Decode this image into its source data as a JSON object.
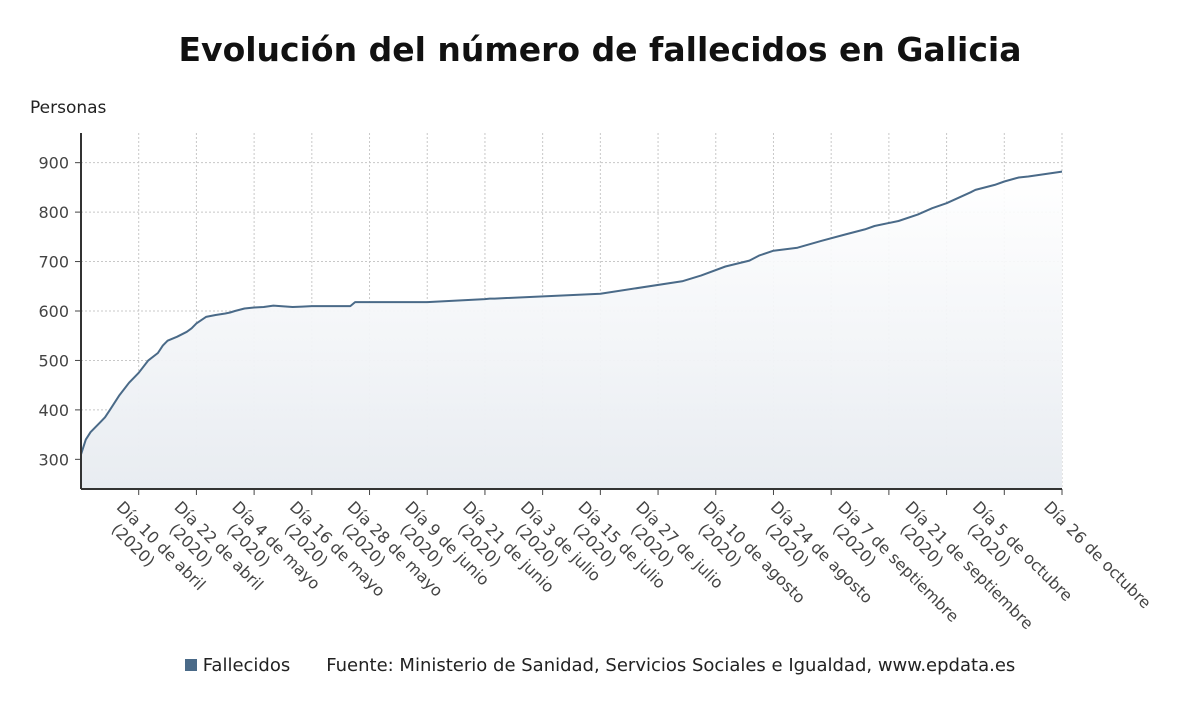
{
  "title": "Evolución del número de fallecidos en Galicia",
  "y_unit": "Personas",
  "legend": {
    "label": "Fallecidos",
    "color": "#4a6a88"
  },
  "source": "Fuente: Ministerio de Sanidad, Servicios Sociales e Igualdad, www.epdata.es",
  "chart_data": {
    "type": "area",
    "ylim": [
      240,
      960
    ],
    "y_ticks": [
      300,
      400,
      500,
      600,
      700,
      800,
      900
    ],
    "grid": true,
    "x_tick_labels": [
      "Día 10 de abril (2020)",
      "Día 22 de abril (2020)",
      "Día 4 de mayo (2020)",
      "Día 16 de mayo (2020)",
      "Día 28 de mayo (2020)",
      "Día 9 de junio (2020)",
      "Día 21 de junio (2020)",
      "Día 3 de julio (2020)",
      "Día 15 de julio (2020)",
      "Día 27 de julio (2020)",
      "Día 10 de agosto (2020)",
      "Día 24 de agosto (2020)",
      "Día 7 de septiembre (2020)",
      "Día 21 de septiembre (2020)",
      "Día 5 de octubre (2020)",
      "Día 26 de octubre"
    ],
    "x_tick_dates": [
      "2020-04-10",
      "2020-04-22",
      "2020-05-04",
      "2020-05-16",
      "2020-05-28",
      "2020-06-09",
      "2020-06-21",
      "2020-07-03",
      "2020-07-15",
      "2020-07-27",
      "2020-08-10",
      "2020-08-24",
      "2020-09-07",
      "2020-09-21",
      "2020-10-05",
      "2020-10-26"
    ],
    "x_grid_dates": [
      "2020-04-10",
      "2020-04-22",
      "2020-05-04",
      "2020-05-16",
      "2020-05-28",
      "2020-06-09",
      "2020-06-21",
      "2020-07-03",
      "2020-07-15",
      "2020-07-27",
      "2020-08-08",
      "2020-08-20",
      "2020-09-01",
      "2020-09-13",
      "2020-09-25",
      "2020-10-07",
      "2020-10-19"
    ],
    "x_range": [
      "2020-03-29",
      "2020-10-19"
    ],
    "series": [
      {
        "name": "Fallecidos",
        "color": "#4a6a88",
        "x": [
          "2020-03-29",
          "2020-03-30",
          "2020-03-31",
          "2020-04-02",
          "2020-04-03",
          "2020-04-04",
          "2020-04-06",
          "2020-04-08",
          "2020-04-10",
          "2020-04-12",
          "2020-04-14",
          "2020-04-15",
          "2020-04-16",
          "2020-04-18",
          "2020-04-20",
          "2020-04-21",
          "2020-04-22",
          "2020-04-24",
          "2020-04-26",
          "2020-04-28",
          "2020-04-29",
          "2020-04-30",
          "2020-05-02",
          "2020-05-04",
          "2020-05-06",
          "2020-05-08",
          "2020-05-12",
          "2020-05-14",
          "2020-05-16",
          "2020-05-18",
          "2020-05-22",
          "2020-05-24",
          "2020-05-25",
          "2020-05-27",
          "2020-05-28",
          "2020-06-01",
          "2020-06-09",
          "2020-06-21",
          "2020-06-22",
          "2020-06-23",
          "2020-07-15",
          "2020-08-01",
          "2020-08-05",
          "2020-08-10",
          "2020-08-15",
          "2020-08-17",
          "2020-08-20",
          "2020-08-25",
          "2020-08-30",
          "2020-09-04",
          "2020-09-08",
          "2020-09-10",
          "2020-09-15",
          "2020-09-19",
          "2020-09-22",
          "2020-09-25",
          "2020-09-30",
          "2020-10-01",
          "2020-10-03",
          "2020-10-05",
          "2020-10-07",
          "2020-10-10",
          "2020-10-12",
          "2020-10-19"
        ],
        "values": [
          310,
          340,
          355,
          375,
          385,
          400,
          430,
          455,
          475,
          500,
          515,
          530,
          540,
          548,
          558,
          565,
          575,
          588,
          592,
          595,
          597,
          600,
          605,
          607,
          608,
          611,
          608,
          609,
          610,
          610,
          610,
          610,
          618,
          618,
          618,
          618,
          618,
          624,
          625,
          625,
          635,
          660,
          672,
          690,
          702,
          712,
          722,
          728,
          742,
          755,
          765,
          772,
          782,
          795,
          808,
          818,
          840,
          845,
          850,
          855,
          862,
          870,
          872,
          882
        ]
      }
    ]
  }
}
